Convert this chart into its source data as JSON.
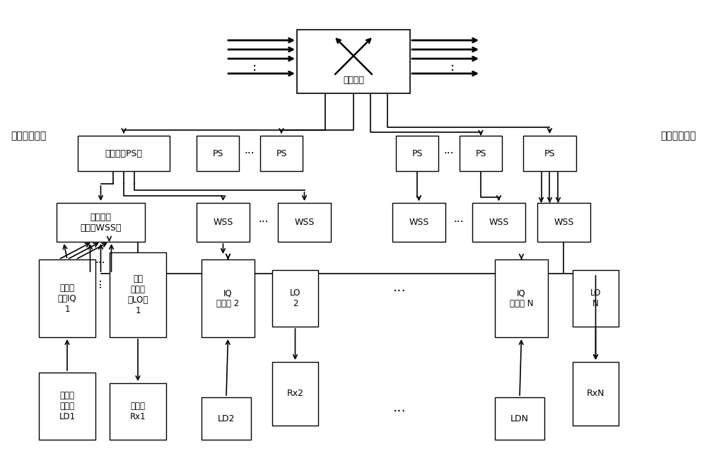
{
  "bg_color": "#ffffff",
  "label_shang": "上路发送终端",
  "label_xia": "下路接收终端",
  "switch_label": "交换节点",
  "PS0_label": "功分器（PS）",
  "WSS0_label": "波长选择\n开关（WSS）",
  "IQ_demod1_label": "调制器\n解调IQ\n1",
  "LO1_label": "本地\n振荡器\n（LO）\n1",
  "LD1_label": "半导体\n激光器\nLD1",
  "Rx1_label": "发送器\nRx1",
  "IQ_mod2_label": "IQ\n调制器 2",
  "LO2_label": "LO\n2",
  "LD2_label": "LD2",
  "Rx2_label": "Rx2",
  "IQ_modN_label": "IQ\n调制器 N",
  "LON_label": "LO\nN",
  "LDN_label": "LDN",
  "RxN_label": "RxN"
}
